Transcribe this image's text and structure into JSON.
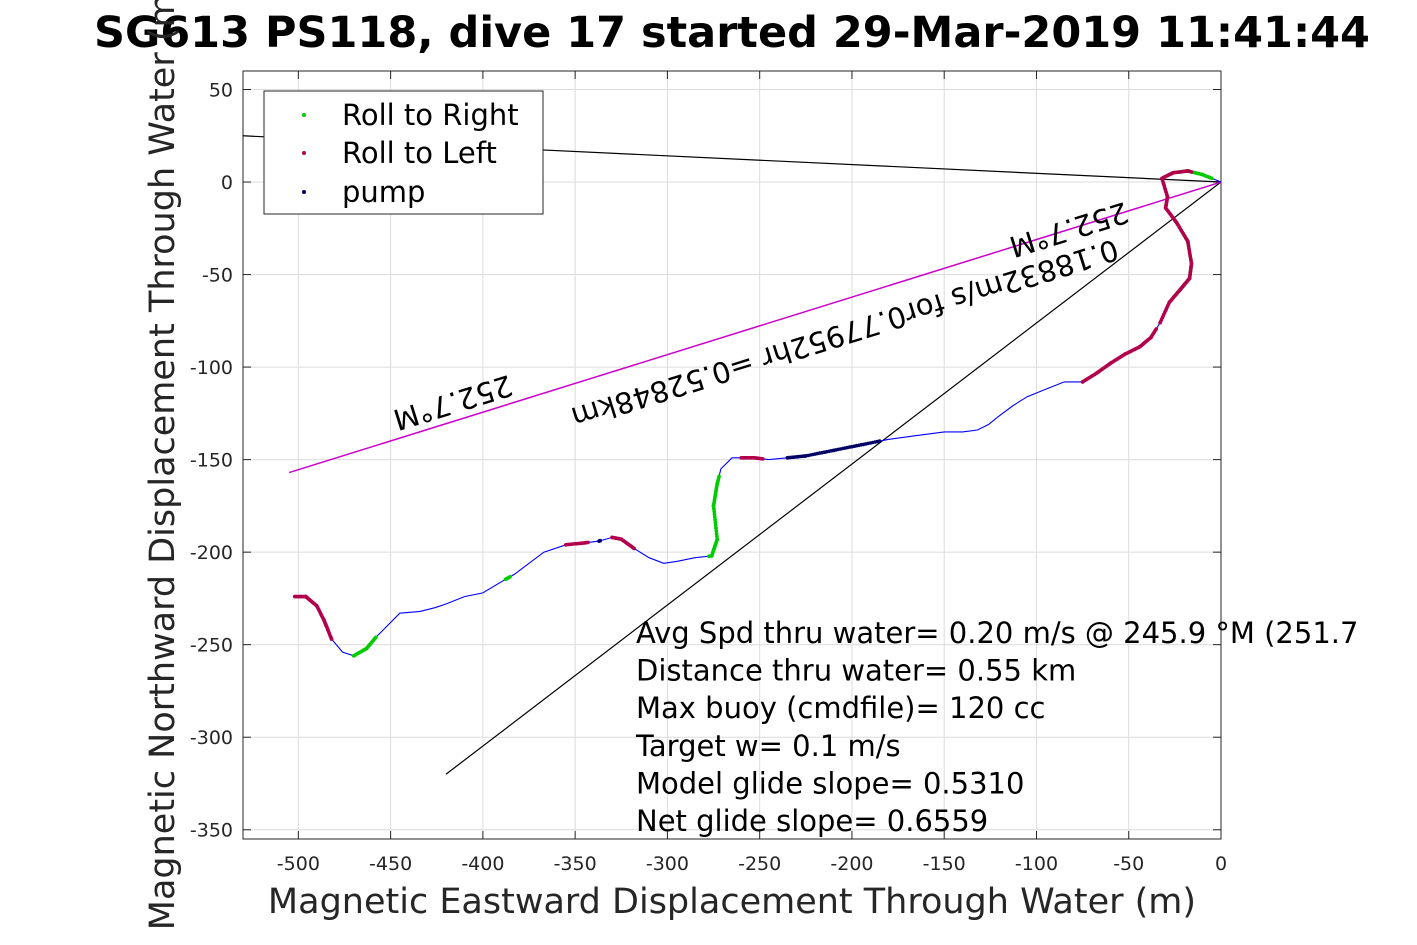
{
  "chart_data": {
    "type": "line",
    "title": "SG613 PS118, dive 17 started 29-Mar-2019 11:41:44",
    "xlabel": "Magnetic Eastward Displacement Through Water (m)",
    "ylabel": "Magnetic Northward Displacement Through Water (m)",
    "xlim": [
      -530,
      0
    ],
    "ylim": [
      -355,
      60
    ],
    "xticks": [
      -500,
      -450,
      -400,
      -350,
      -300,
      -250,
      -200,
      -150,
      -100,
      -50,
      0
    ],
    "yticks": [
      50,
      0,
      -50,
      -100,
      -150,
      -200,
      -250,
      -300,
      -350
    ],
    "grid": true,
    "legend": {
      "placement": "top-left",
      "entries": [
        "Roll to Right",
        "Roll to Left",
        "pump"
      ]
    },
    "colors": {
      "track": "#0000ff",
      "roll_right": "#00cc00",
      "roll_left": "#b3004d",
      "pump": "#000066",
      "heading_line": "#cc00cc",
      "ref_line": "#000000"
    },
    "track": [
      [
        0,
        0
      ],
      [
        -10,
        4
      ],
      [
        -18,
        6
      ],
      [
        -26,
        5
      ],
      [
        -32,
        2
      ],
      [
        -29,
        -8
      ],
      [
        -30,
        -14
      ],
      [
        -24,
        -22
      ],
      [
        -18,
        -32
      ],
      [
        -16,
        -44
      ],
      [
        -17,
        -52
      ],
      [
        -22,
        -58
      ],
      [
        -28,
        -65
      ],
      [
        -33,
        -76
      ],
      [
        -38,
        -84
      ],
      [
        -44,
        -89
      ],
      [
        -52,
        -93
      ],
      [
        -60,
        -98
      ],
      [
        -67,
        -103
      ],
      [
        -75,
        -108
      ],
      [
        -85,
        -108
      ],
      [
        -95,
        -112
      ],
      [
        -105,
        -116
      ],
      [
        -113,
        -121
      ],
      [
        -121,
        -127
      ],
      [
        -126,
        -131
      ],
      [
        -132,
        -134
      ],
      [
        -140,
        -135
      ],
      [
        -150,
        -135
      ],
      [
        -165,
        -137
      ],
      [
        -180,
        -139
      ],
      [
        -195,
        -142
      ],
      [
        -210,
        -145
      ],
      [
        -225,
        -148
      ],
      [
        -235,
        -149
      ],
      [
        -245,
        -150
      ],
      [
        -253,
        -149
      ],
      [
        -259,
        -149
      ],
      [
        -265,
        -149
      ],
      [
        -271,
        -155
      ],
      [
        -273,
        -163
      ],
      [
        -275,
        -175
      ],
      [
        -273,
        -193
      ],
      [
        -276,
        -202
      ],
      [
        -285,
        -203
      ],
      [
        -295,
        -205
      ],
      [
        -302,
        -206
      ],
      [
        -310,
        -203
      ],
      [
        -318,
        -198
      ],
      [
        -325,
        -193
      ],
      [
        -330,
        -192
      ],
      [
        -337,
        -194
      ],
      [
        -345,
        -195
      ],
      [
        -355,
        -196
      ],
      [
        -367,
        -200
      ],
      [
        -375,
        -206
      ],
      [
        -383,
        -212
      ],
      [
        -390,
        -216
      ],
      [
        -400,
        -222
      ],
      [
        -410,
        -224
      ],
      [
        -420,
        -228
      ],
      [
        -426,
        -230
      ],
      [
        -434,
        -232
      ],
      [
        -445,
        -233
      ],
      [
        -452,
        -240
      ],
      [
        -458,
        -246
      ],
      [
        -463,
        -252
      ],
      [
        -470,
        -256
      ],
      [
        -476,
        -254
      ],
      [
        -482,
        -247
      ],
      [
        -486,
        -237
      ],
      [
        -490,
        -229
      ],
      [
        -496,
        -224
      ],
      [
        -502,
        -224
      ]
    ],
    "roll_right_x_ranges": [
      [
        -26,
        -5
      ],
      [
        -275,
        -272
      ],
      [
        -278,
        -273
      ],
      [
        -388,
        -385
      ],
      [
        -470,
        -458
      ]
    ],
    "roll_left_x_ranges": [
      [
        -33,
        -16
      ],
      [
        -72,
        -35
      ],
      [
        -75,
        -72
      ],
      [
        -260,
        -248
      ],
      [
        -355,
        -346
      ],
      [
        -346,
        -343
      ],
      [
        -330,
        -318
      ],
      [
        -496,
        -484
      ],
      [
        -486,
        -482
      ],
      [
        -502,
        -495
      ]
    ],
    "pump_x_ranges": [
      [
        -235,
        -185
      ],
      [
        -337,
        -336
      ]
    ],
    "heading_line": {
      "from": [
        -505,
        -157
      ],
      "to": [
        0,
        0
      ],
      "label_near_end": "252.7°M",
      "label_mid": "0.18832m/s for0.77952hr =0.52848km",
      "label_start": "252.7°M"
    },
    "ref_lines": [
      {
        "from": [
          -530,
          25
        ],
        "to": [
          0,
          0
        ]
      },
      {
        "from": [
          -420,
          -320
        ],
        "to": [
          0,
          0
        ]
      }
    ],
    "annotations": [
      "Avg Spd thru water=  0.20 m/s @ 245.9 °M (251.7",
      "Distance thru water=  0.55 km",
      "Max buoy (cmdfile)= 120 cc",
      "Target w= 0.1 m/s",
      "Model glide slope= 0.5310",
      "Net glide slope= 0.6559"
    ]
  }
}
